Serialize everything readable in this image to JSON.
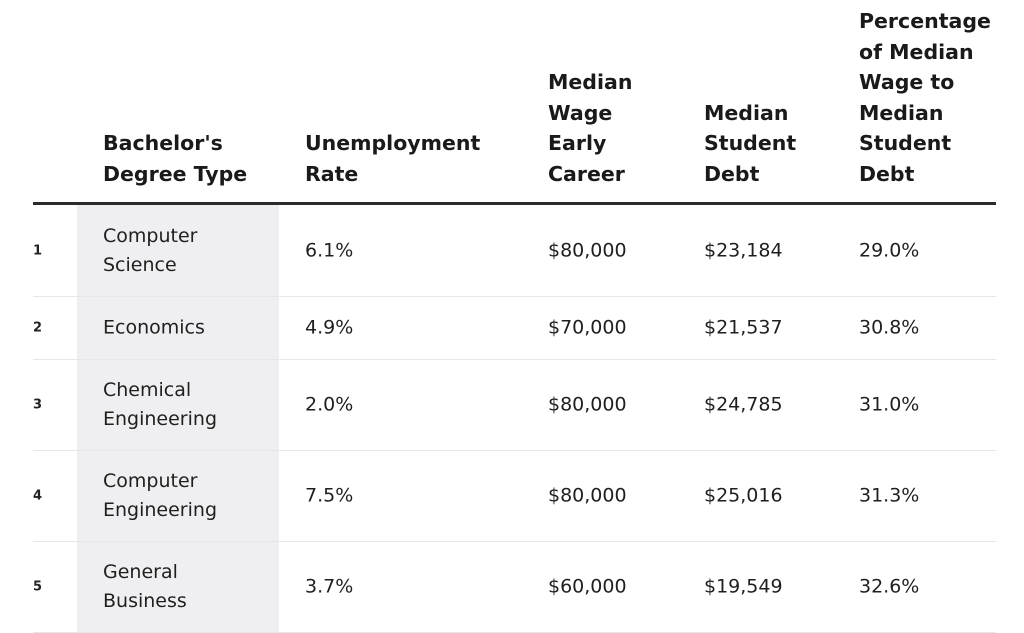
{
  "table": {
    "headers": [
      "Bachelor's\nDegree Type",
      "Unemployment\nRate",
      "Median\nWage\nEarly\nCareer",
      "Median\nStudent\nDebt",
      "Percentage\nof Median\nWage to\nMedian\nStudent\nDebt"
    ],
    "rows": [
      {
        "rank": "1",
        "degree": "Computer\nScience",
        "unemployment": "6.1%",
        "wage": "$80,000",
        "debt": "$23,184",
        "percentage": "29.0%"
      },
      {
        "rank": "2",
        "degree": "Economics",
        "unemployment": "4.9%",
        "wage": "$70,000",
        "debt": "$21,537",
        "percentage": "30.8%"
      },
      {
        "rank": "3",
        "degree": "Chemical\nEngineering",
        "unemployment": "2.0%",
        "wage": "$80,000",
        "debt": "$24,785",
        "percentage": "31.0%"
      },
      {
        "rank": "4",
        "degree": "Computer\nEngineering",
        "unemployment": "7.5%",
        "wage": "$80,000",
        "debt": "$25,016",
        "percentage": "31.3%"
      },
      {
        "rank": "5",
        "degree": "General\nBusiness",
        "unemployment": "3.7%",
        "wage": "$60,000",
        "debt": "$19,549",
        "percentage": "32.6%"
      }
    ]
  }
}
